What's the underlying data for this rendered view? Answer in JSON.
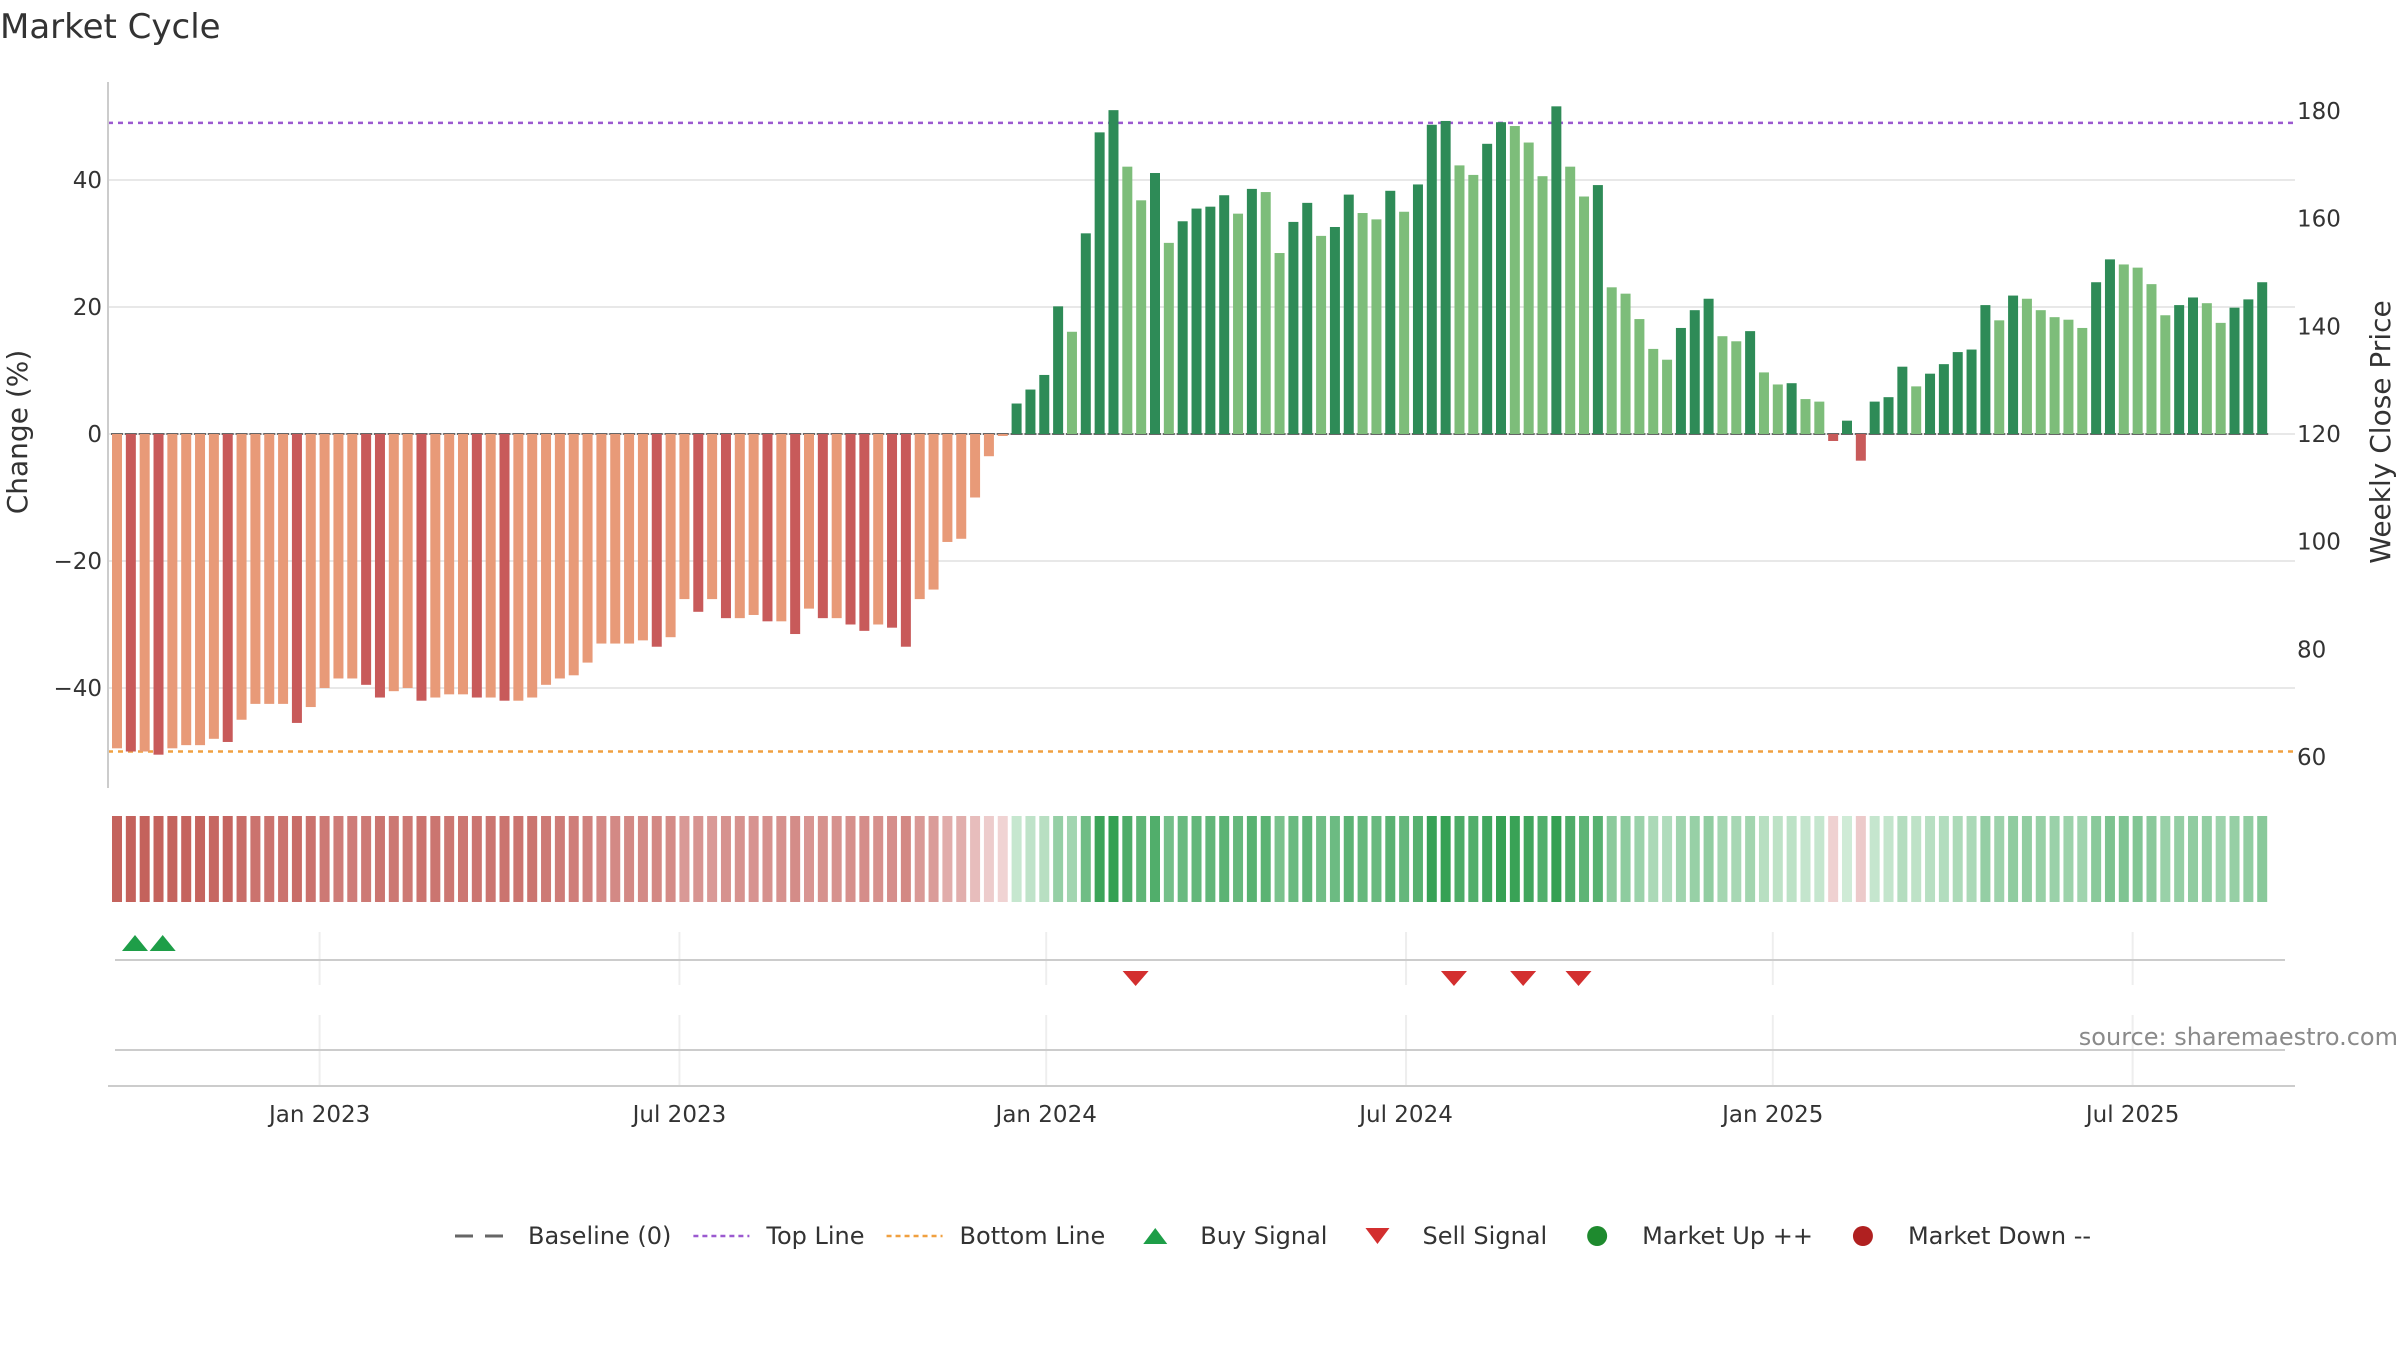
{
  "chart_data": {
    "type": "bar",
    "title": "Market Cycle",
    "ylabel": "Change (%)",
    "y2label": "Weekly Close Price",
    "ylim": [
      -55,
      57
    ],
    "yticks": [
      -40,
      -20,
      0,
      20,
      40
    ],
    "y2ticks": [
      60,
      80,
      100,
      120,
      140,
      160,
      180
    ],
    "xticks": [
      {
        "label": "Jan 2023",
        "week": 15
      },
      {
        "label": "Jul 2023",
        "week": 41
      },
      {
        "label": "Jan 2024",
        "week": 67.5
      },
      {
        "label": "Jul 2024",
        "week": 93.5
      },
      {
        "label": "Jan 2025",
        "week": 120
      },
      {
        "label": "Jul 2025",
        "week": 146
      }
    ],
    "top_line": 49,
    "bottom_line": -50,
    "series": [
      {
        "name": "Change (%)",
        "values": [
          -49.5,
          -50,
          -50,
          -50.5,
          -49.5,
          -49,
          -49,
          -48,
          -48.5,
          -45,
          -42.5,
          -42.5,
          -42.5,
          -45.5,
          -43,
          -40,
          -38.5,
          -38.5,
          -39.5,
          -41.5,
          -40.5,
          -40,
          -42,
          -41.5,
          -41,
          -41,
          -41.5,
          -41.5,
          -42,
          -42,
          -41.5,
          -39.5,
          -38.5,
          -38,
          -36,
          -33,
          -33,
          -33,
          -32.5,
          -33.5,
          -32,
          -26,
          -28,
          -26,
          -29,
          -29,
          -28.5,
          -29.5,
          -29.5,
          -31.5,
          -27.5,
          -29,
          -29,
          -30,
          -31,
          -30,
          -30.5,
          -33.5,
          -26,
          -24.5,
          -17,
          -16.5,
          -10,
          -3.5,
          -0.3,
          4.8,
          7,
          9.3,
          20.1,
          16.1,
          31.6,
          47.5,
          51,
          42.1,
          36.8,
          41.1,
          30.1,
          33.5,
          35.5,
          35.8,
          37.6,
          34.7,
          38.6,
          38.1,
          28.5,
          33.4,
          36.4,
          31.2,
          32.6,
          37.7,
          34.8,
          33.8,
          38.3,
          35,
          39.3,
          48.7,
          49.3,
          42.3,
          40.8,
          45.7,
          49.1,
          48.5,
          45.9,
          40.6,
          51.6,
          42.1,
          37.4,
          39.2,
          23.1,
          22.1,
          18.1,
          13.4,
          11.7,
          16.7,
          19.5,
          21.3,
          15.4,
          14.6,
          16.2,
          9.7,
          7.8,
          8,
          5.5,
          5.1,
          -1.1,
          2.1,
          -4.2,
          5.1,
          5.8,
          10.6,
          7.5,
          9.5,
          11,
          12.9,
          13.3,
          20.3,
          17.9,
          21.8,
          21.3,
          19.5,
          18.4,
          18,
          16.7,
          23.9,
          27.5,
          26.7,
          26.2,
          23.6,
          18.7,
          20.3,
          21.5,
          20.6,
          17.5,
          19.9,
          21.2,
          23.9
        ]
      }
    ],
    "signals": {
      "buy_weeks": [
        1.3,
        3.3
      ],
      "sell_weeks": [
        73.6,
        96.6,
        101.6,
        105.6
      ]
    },
    "legend": [
      {
        "label": "Baseline (0)",
        "type": "dash",
        "color": "#666666"
      },
      {
        "label": "Top Line",
        "type": "dot",
        "color": "#9b59d0"
      },
      {
        "label": "Bottom Line",
        "type": "dot",
        "color": "#f0a040"
      },
      {
        "label": "Buy Signal",
        "type": "tri-up",
        "color": "#1e9e48"
      },
      {
        "label": "Sell Signal",
        "type": "tri-down",
        "color": "#d32f2f"
      },
      {
        "label": "Market Up ++",
        "type": "circle",
        "color": "#1e8a2e"
      },
      {
        "label": "Market Down --",
        "type": "circle",
        "color": "#b02020"
      }
    ],
    "legend_position": "bottom-center",
    "grid": true,
    "source": "source: sharemaestro.com"
  }
}
